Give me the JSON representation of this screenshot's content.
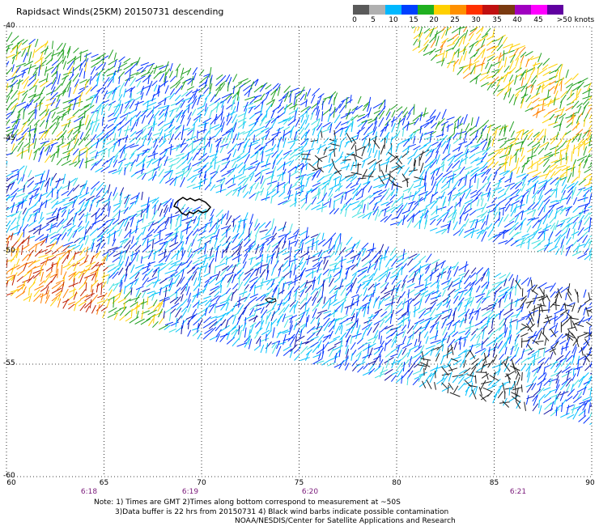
{
  "title": "Rapidsact Winds(25KM) 20150731 descending",
  "colorbar": {
    "labels": [
      "0",
      "5",
      "10",
      "15",
      "20",
      "25",
      "30",
      "35",
      "40",
      "45",
      ">50 knots"
    ],
    "colors": [
      "#5a5a5a",
      "#b0b0b0",
      "#00b8ff",
      "#0040ff",
      "#20b020",
      "#ffd000",
      "#ff9000",
      "#ff3000",
      "#c01010",
      "#7a3a10",
      "#a000c0",
      "#ff00ff",
      "#6000a0"
    ]
  },
  "axes": {
    "lat_labels": [
      "-40",
      "-45",
      "-50",
      "-55",
      "-60"
    ],
    "lon_labels": [
      "60",
      "65",
      "70",
      "75",
      "80",
      "85",
      "90"
    ],
    "time_labels": [
      "6:18",
      "6:19",
      "6:20",
      "6:21"
    ],
    "lat_range": [
      -60,
      -40
    ],
    "lon_range": [
      60,
      90
    ]
  },
  "notes": {
    "line1": "Note: 1) Times are GMT 2)Times along bottom correspond to measurement at ~50S",
    "line2": "3)Data buffer is 22 hrs from 20150731 4) Black wind barbs indicate possible contamination",
    "line3": "NOAA/NESDIS/Center for Satellite Applications and Research"
  },
  "map": {
    "swath_colors": [
      "#20a020",
      "#ffd000",
      "#0030ff",
      "#00c0ff",
      "#40e0e0",
      "#1010a0",
      "#ff8000",
      "#c02000",
      "#202020"
    ]
  }
}
